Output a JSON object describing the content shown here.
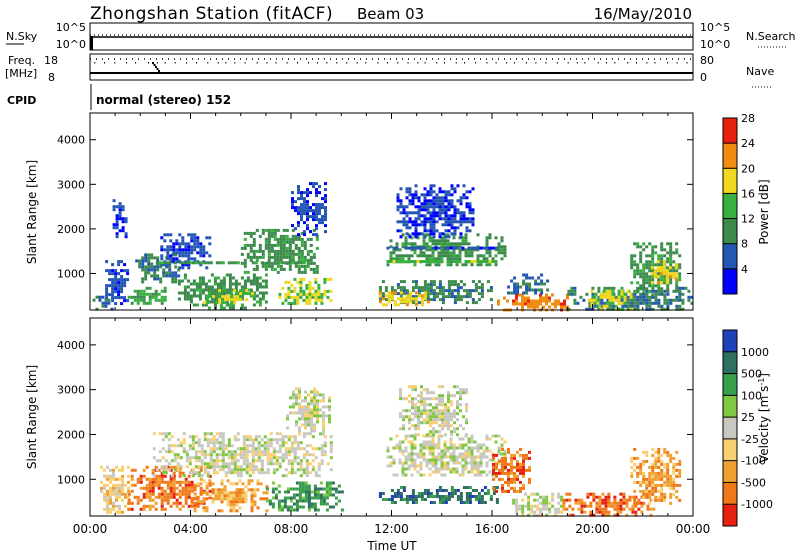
{
  "header": {
    "station": "Zhongshan Station (fitACF)",
    "beam": "Beam 03",
    "date": "16/May/2010"
  },
  "summary_panels": {
    "nsky_label": "N.Sky",
    "nsky_tick_top": "10^5",
    "nsky_tick_bottom": "10^0",
    "nsearch_label": "N.Search",
    "nsearch_tick_top": "10^5",
    "nsearch_tick_bottom": "10^0",
    "freq_label_1": "Freq.",
    "freq_label_2": "[MHz]",
    "freq_tick_top": "18",
    "freq_tick_bottom": "8",
    "nave_label": "Nave",
    "nave_tick_top": "80",
    "nave_tick_bottom": "0",
    "cpid_label": "CPID",
    "cpid_text": "normal (stereo) 152"
  },
  "chart_data": [
    {
      "type": "heatmap",
      "name": "power",
      "ylabel": "Slant Range [km]",
      "ylim": [
        180,
        4600
      ],
      "yticks": [
        1000,
        2000,
        3000,
        4000
      ],
      "xlim": [
        0,
        24
      ],
      "colorbar": {
        "label": "Power [dB]",
        "ticks": [
          "4",
          "8",
          "12",
          "16",
          "20",
          "24",
          "28"
        ],
        "colors": [
          "#0000ff",
          "#2456b4",
          "#3c8a4c",
          "#38b040",
          "#f0d820",
          "#f08c10",
          "#e82010"
        ],
        "range": [
          0,
          30
        ]
      },
      "blobs": [
        {
          "t0": 0.1,
          "t1": 0.9,
          "r0": 200,
          "r1": 500,
          "v": 8
        },
        {
          "t0": 0.6,
          "t1": 1.5,
          "r0": 300,
          "r1": 1300,
          "v": 6
        },
        {
          "t0": 0.9,
          "t1": 1.4,
          "r0": 1800,
          "r1": 2800,
          "v": 5
        },
        {
          "t0": 1.5,
          "t1": 3.0,
          "r0": 300,
          "r1": 700,
          "v": 13
        },
        {
          "t0": 1.8,
          "t1": 3.6,
          "r0": 800,
          "r1": 1450,
          "v": 9
        },
        {
          "t0": 2.8,
          "t1": 4.8,
          "r0": 1100,
          "r1": 1900,
          "v": 6
        },
        {
          "t0": 3.5,
          "t1": 7.0,
          "r0": 250,
          "r1": 1000,
          "v": 11
        },
        {
          "t0": 4.5,
          "t1": 6.5,
          "r0": 350,
          "r1": 650,
          "v": 18
        },
        {
          "t0": 6.0,
          "t1": 9.0,
          "r0": 1000,
          "r1": 2000,
          "v": 11
        },
        {
          "t0": 7.5,
          "t1": 9.6,
          "r0": 300,
          "r1": 900,
          "v": 17
        },
        {
          "t0": 8.0,
          "t1": 9.4,
          "r0": 1900,
          "r1": 3050,
          "v": 5
        },
        {
          "t0": 11.5,
          "t1": 16.0,
          "r0": 350,
          "r1": 850,
          "v": 10
        },
        {
          "t0": 11.5,
          "t1": 13.5,
          "r0": 300,
          "r1": 600,
          "v": 20
        },
        {
          "t0": 11.8,
          "t1": 16.5,
          "r0": 1200,
          "r1": 1900,
          "v": 11
        },
        {
          "t0": 12.2,
          "t1": 15.2,
          "r0": 1800,
          "r1": 3000,
          "v": 5
        },
        {
          "t0": 16.2,
          "t1": 19.0,
          "r0": 180,
          "r1": 550,
          "v": 24
        },
        {
          "t0": 16.6,
          "t1": 18.2,
          "r0": 550,
          "r1": 1000,
          "v": 8
        },
        {
          "t0": 19.0,
          "t1": 24.0,
          "r0": 180,
          "r1": 700,
          "v": 9
        },
        {
          "t0": 19.8,
          "t1": 21.5,
          "r0": 200,
          "r1": 700,
          "v": 18
        },
        {
          "t0": 21.5,
          "t1": 23.5,
          "r0": 500,
          "r1": 1700,
          "v": 11
        },
        {
          "t0": 22.2,
          "t1": 23.3,
          "r0": 800,
          "r1": 1300,
          "v": 20
        }
      ],
      "stripes": [
        {
          "t0": 2.5,
          "t1": 8.5,
          "r": 1250,
          "v": 12
        },
        {
          "t0": 11.8,
          "t1": 16.2,
          "r": 1280,
          "v": 16
        },
        {
          "t0": 11.8,
          "t1": 16.2,
          "r": 1580,
          "v": 6
        }
      ]
    },
    {
      "type": "heatmap",
      "name": "velocity",
      "ylabel": "Slant Range [km]",
      "ylim": [
        180,
        4600
      ],
      "yticks": [
        1000,
        2000,
        3000,
        4000
      ],
      "xlim": [
        0,
        24
      ],
      "xticks": [
        "00:00",
        "04:00",
        "08:00",
        "12:00",
        "16:00",
        "20:00",
        "00:00"
      ],
      "xlabel": "Time UT",
      "colorbar": {
        "label": "Velocity [m s^-1]",
        "ticks": [
          "1000",
          "500",
          "100",
          "25",
          "-25",
          "-100",
          "-500",
          "-1000"
        ],
        "colors": [
          "#2040b8",
          "#307060",
          "#38a04c",
          "#80c840",
          "#c8c8c0",
          "#f8d070",
          "#f0a030",
          "#f07818",
          "#e82010"
        ]
      },
      "blobs": [
        {
          "t0": 0.4,
          "t1": 1.5,
          "r0": 250,
          "r1": 1300,
          "v": 5
        },
        {
          "t0": 1.5,
          "t1": 4.8,
          "r0": 350,
          "r1": 1300,
          "v": 7
        },
        {
          "t0": 4.0,
          "t1": 7.0,
          "r0": 300,
          "r1": 1000,
          "v": 6
        },
        {
          "t0": 2.5,
          "t1": 9.6,
          "r0": 1100,
          "r1": 2050,
          "v": 4
        },
        {
          "t0": 7.8,
          "t1": 9.5,
          "r0": 2000,
          "r1": 3050,
          "v": 4
        },
        {
          "t0": 7.0,
          "t1": 10.0,
          "r0": 300,
          "r1": 950,
          "v": 2
        },
        {
          "t0": 11.5,
          "t1": 16.2,
          "r0": 450,
          "r1": 850,
          "v": 1
        },
        {
          "t0": 11.8,
          "t1": 16.5,
          "r0": 1100,
          "r1": 2000,
          "v": 4
        },
        {
          "t0": 12.3,
          "t1": 15.0,
          "r0": 2000,
          "r1": 3100,
          "v": 4
        },
        {
          "t0": 16.0,
          "t1": 17.5,
          "r0": 700,
          "r1": 1700,
          "v": 7
        },
        {
          "t0": 16.8,
          "t1": 18.8,
          "r0": 180,
          "r1": 700,
          "v": 4
        },
        {
          "t0": 18.8,
          "t1": 22.5,
          "r0": 180,
          "r1": 700,
          "v": 7
        },
        {
          "t0": 21.5,
          "t1": 23.5,
          "r0": 450,
          "r1": 1700,
          "v": 6
        }
      ]
    }
  ]
}
